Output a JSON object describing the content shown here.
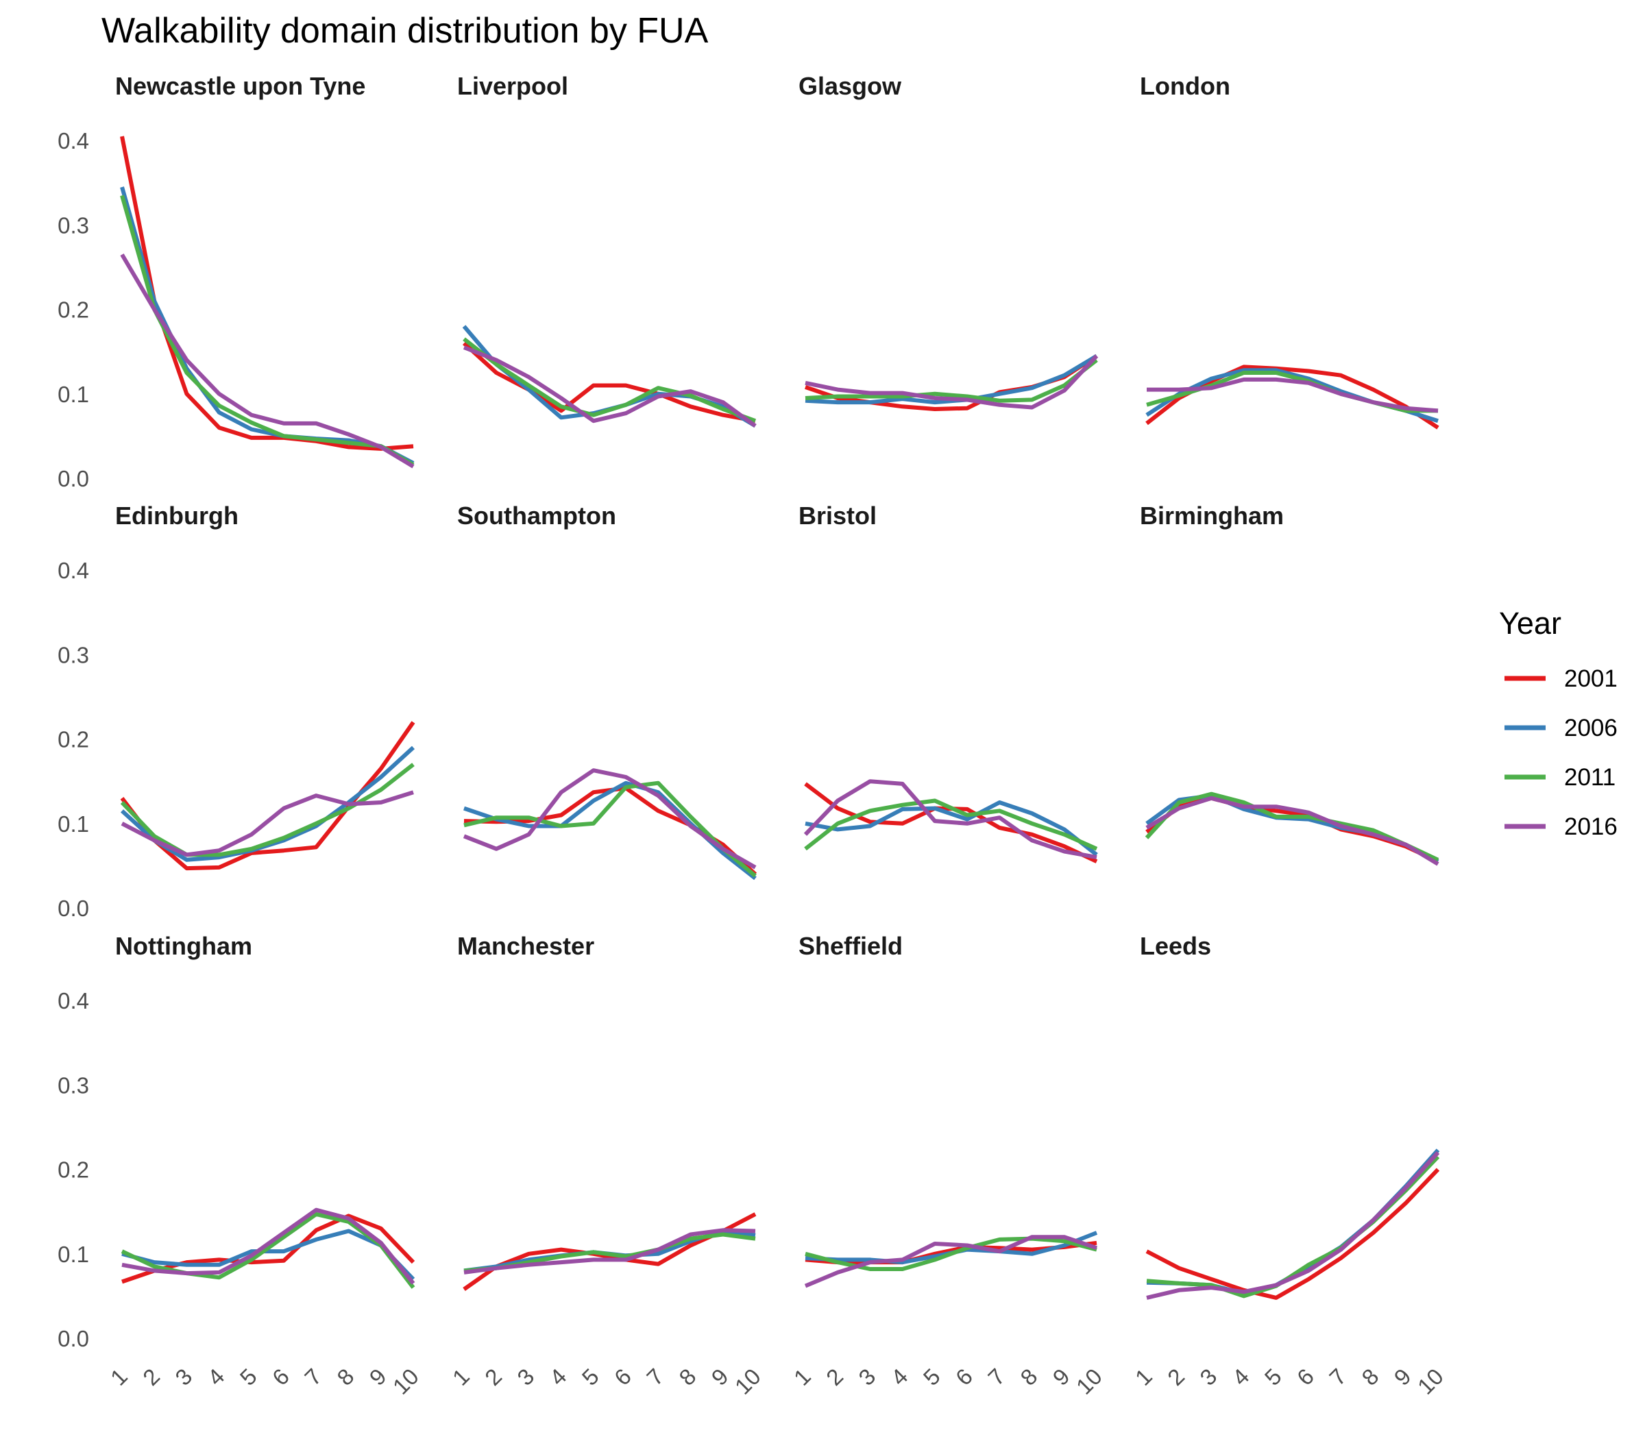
{
  "chart_data": {
    "type": "line",
    "title": "Walkability domain distribution by FUA",
    "xlabel": "",
    "ylabel": "",
    "x": [
      "1",
      "2",
      "3",
      "4",
      "5",
      "6",
      "7",
      "8",
      "9",
      "10"
    ],
    "ylim": [
      0,
      0.4
    ],
    "yticks": [
      "0.0",
      "0.1",
      "0.2",
      "0.3",
      "0.4"
    ],
    "grid": false,
    "legend": {
      "title": "Year",
      "placement": "right",
      "entries": [
        {
          "name": "2001",
          "color": "#E41A1C"
        },
        {
          "name": "2006",
          "color": "#377EB8"
        },
        {
          "name": "2011",
          "color": "#4DAF4A"
        },
        {
          "name": "2016",
          "color": "#984EA3"
        }
      ]
    },
    "panels": [
      {
        "name": "Newcastle upon Tyne",
        "series": [
          {
            "name": "2001",
            "values": [
              0.405,
              0.21,
              0.1,
              0.06,
              0.048,
              0.048,
              0.044,
              0.037,
              0.035,
              0.038
            ]
          },
          {
            "name": "2006",
            "values": [
              0.345,
              0.21,
              0.13,
              0.078,
              0.058,
              0.05,
              0.047,
              0.045,
              0.038,
              0.018
            ]
          },
          {
            "name": "2011",
            "values": [
              0.335,
              0.2,
              0.125,
              0.086,
              0.066,
              0.05,
              0.046,
              0.042,
              0.038,
              0.016
            ]
          },
          {
            "name": "2016",
            "values": [
              0.265,
              0.2,
              0.14,
              0.1,
              0.075,
              0.065,
              0.065,
              0.052,
              0.037,
              0.014
            ]
          }
        ]
      },
      {
        "name": "Liverpool",
        "series": [
          {
            "name": "2001",
            "values": [
              0.16,
              0.125,
              0.105,
              0.08,
              0.11,
              0.11,
              0.1,
              0.085,
              0.075,
              0.068
            ]
          },
          {
            "name": "2006",
            "values": [
              0.18,
              0.135,
              0.105,
              0.072,
              0.077,
              0.087,
              0.1,
              0.097,
              0.085,
              0.062
            ]
          },
          {
            "name": "2011",
            "values": [
              0.165,
              0.135,
              0.11,
              0.085,
              0.075,
              0.087,
              0.107,
              0.098,
              0.082,
              0.068
            ]
          },
          {
            "name": "2016",
            "values": [
              0.155,
              0.14,
              0.12,
              0.095,
              0.068,
              0.077,
              0.097,
              0.103,
              0.09,
              0.062
            ]
          }
        ]
      },
      {
        "name": "Glasgow",
        "series": [
          {
            "name": "2001",
            "values": [
              0.108,
              0.095,
              0.09,
              0.085,
              0.082,
              0.083,
              0.102,
              0.108,
              0.12,
              0.145
            ]
          },
          {
            "name": "2006",
            "values": [
              0.092,
              0.09,
              0.09,
              0.094,
              0.09,
              0.093,
              0.1,
              0.107,
              0.122,
              0.145
            ]
          },
          {
            "name": "2011",
            "values": [
              0.095,
              0.097,
              0.097,
              0.097,
              0.1,
              0.097,
              0.092,
              0.093,
              0.11,
              0.14
            ]
          },
          {
            "name": "2016",
            "values": [
              0.113,
              0.105,
              0.101,
              0.101,
              0.095,
              0.093,
              0.087,
              0.084,
              0.104,
              0.145
            ]
          }
        ]
      },
      {
        "name": "London",
        "series": [
          {
            "name": "2001",
            "values": [
              0.065,
              0.095,
              0.115,
              0.132,
              0.13,
              0.127,
              0.122,
              0.105,
              0.085,
              0.06
            ]
          },
          {
            "name": "2006",
            "values": [
              0.075,
              0.1,
              0.118,
              0.128,
              0.128,
              0.118,
              0.103,
              0.09,
              0.08,
              0.068
            ]
          },
          {
            "name": "2011",
            "values": [
              0.087,
              0.098,
              0.11,
              0.125,
              0.125,
              0.115,
              0.1,
              0.09,
              0.08,
              0.08
            ]
          },
          {
            "name": "2016",
            "values": [
              0.105,
              0.105,
              0.107,
              0.117,
              0.117,
              0.113,
              0.1,
              0.09,
              0.083,
              0.08
            ]
          }
        ]
      },
      {
        "name": "Edinburgh",
        "series": [
          {
            "name": "2001",
            "values": [
              0.13,
              0.08,
              0.047,
              0.048,
              0.065,
              0.068,
              0.072,
              0.12,
              0.165,
              0.22
            ]
          },
          {
            "name": "2006",
            "values": [
              0.115,
              0.08,
              0.057,
              0.06,
              0.068,
              0.08,
              0.097,
              0.125,
              0.155,
              0.19
            ]
          },
          {
            "name": "2011",
            "values": [
              0.125,
              0.085,
              0.063,
              0.063,
              0.07,
              0.083,
              0.1,
              0.118,
              0.14,
              0.17
            ]
          },
          {
            "name": "2016",
            "values": [
              0.1,
              0.08,
              0.063,
              0.068,
              0.087,
              0.118,
              0.133,
              0.123,
              0.125,
              0.137
            ]
          }
        ]
      },
      {
        "name": "Southampton",
        "series": [
          {
            "name": "2001",
            "values": [
              0.103,
              0.102,
              0.103,
              0.11,
              0.137,
              0.142,
              0.115,
              0.098,
              0.075,
              0.04
            ]
          },
          {
            "name": "2006",
            "values": [
              0.118,
              0.105,
              0.097,
              0.097,
              0.127,
              0.148,
              0.137,
              0.1,
              0.065,
              0.035
            ]
          },
          {
            "name": "2011",
            "values": [
              0.098,
              0.107,
              0.107,
              0.097,
              0.1,
              0.143,
              0.148,
              0.108,
              0.07,
              0.038
            ]
          },
          {
            "name": "2016",
            "values": [
              0.085,
              0.07,
              0.087,
              0.137,
              0.163,
              0.155,
              0.133,
              0.097,
              0.07,
              0.048
            ]
          }
        ]
      },
      {
        "name": "Bristol",
        "series": [
          {
            "name": "2001",
            "values": [
              0.147,
              0.118,
              0.102,
              0.1,
              0.118,
              0.117,
              0.095,
              0.087,
              0.073,
              0.055
            ]
          },
          {
            "name": "2006",
            "values": [
              0.1,
              0.093,
              0.097,
              0.117,
              0.118,
              0.105,
              0.125,
              0.112,
              0.093,
              0.063
            ]
          },
          {
            "name": "2011",
            "values": [
              0.07,
              0.1,
              0.115,
              0.122,
              0.127,
              0.11,
              0.115,
              0.1,
              0.087,
              0.07
            ]
          },
          {
            "name": "2016",
            "values": [
              0.087,
              0.127,
              0.15,
              0.147,
              0.103,
              0.1,
              0.107,
              0.08,
              0.067,
              0.06
            ]
          }
        ]
      },
      {
        "name": "Birmingham",
        "series": [
          {
            "name": "2001",
            "values": [
              0.09,
              0.12,
              0.13,
              0.12,
              0.115,
              0.11,
              0.093,
              0.085,
              0.073,
              0.055
            ]
          },
          {
            "name": "2006",
            "values": [
              0.1,
              0.128,
              0.133,
              0.117,
              0.107,
              0.105,
              0.095,
              0.088,
              0.075,
              0.055
            ]
          },
          {
            "name": "2011",
            "values": [
              0.083,
              0.125,
              0.135,
              0.125,
              0.108,
              0.108,
              0.1,
              0.092,
              0.075,
              0.057
            ]
          },
          {
            "name": "2016",
            "values": [
              0.095,
              0.118,
              0.13,
              0.12,
              0.12,
              0.113,
              0.097,
              0.087,
              0.075,
              0.052
            ]
          }
        ]
      },
      {
        "name": "Nottingham",
        "series": [
          {
            "name": "2001",
            "values": [
              0.067,
              0.08,
              0.09,
              0.093,
              0.09,
              0.092,
              0.128,
              0.145,
              0.13,
              0.09
            ]
          },
          {
            "name": "2006",
            "values": [
              0.1,
              0.09,
              0.087,
              0.087,
              0.103,
              0.103,
              0.117,
              0.127,
              0.11,
              0.07
            ]
          },
          {
            "name": "2011",
            "values": [
              0.103,
              0.085,
              0.077,
              0.072,
              0.093,
              0.12,
              0.147,
              0.138,
              0.11,
              0.06
            ]
          },
          {
            "name": "2016",
            "values": [
              0.087,
              0.08,
              0.077,
              0.078,
              0.098,
              0.125,
              0.152,
              0.142,
              0.113,
              0.065
            ]
          }
        ]
      },
      {
        "name": "Manchester",
        "series": [
          {
            "name": "2001",
            "values": [
              0.058,
              0.085,
              0.1,
              0.105,
              0.1,
              0.093,
              0.088,
              0.11,
              0.127,
              0.147
            ]
          },
          {
            "name": "2006",
            "values": [
              0.08,
              0.085,
              0.093,
              0.098,
              0.102,
              0.098,
              0.1,
              0.115,
              0.127,
              0.122
            ]
          },
          {
            "name": "2011",
            "values": [
              0.08,
              0.083,
              0.09,
              0.097,
              0.102,
              0.097,
              0.105,
              0.118,
              0.123,
              0.118
            ]
          },
          {
            "name": "2016",
            "values": [
              0.078,
              0.083,
              0.087,
              0.09,
              0.093,
              0.093,
              0.105,
              0.123,
              0.128,
              0.127
            ]
          }
        ]
      },
      {
        "name": "Sheffield",
        "series": [
          {
            "name": "2001",
            "values": [
              0.093,
              0.09,
              0.09,
              0.09,
              0.1,
              0.108,
              0.107,
              0.105,
              0.108,
              0.113
            ]
          },
          {
            "name": "2006",
            "values": [
              0.095,
              0.093,
              0.093,
              0.09,
              0.097,
              0.105,
              0.103,
              0.1,
              0.11,
              0.125
            ]
          },
          {
            "name": "2011",
            "values": [
              0.1,
              0.09,
              0.082,
              0.082,
              0.093,
              0.107,
              0.117,
              0.118,
              0.115,
              0.105
            ]
          },
          {
            "name": "2016",
            "values": [
              0.062,
              0.078,
              0.09,
              0.093,
              0.112,
              0.11,
              0.103,
              0.12,
              0.12,
              0.107
            ]
          }
        ]
      },
      {
        "name": "Leeds",
        "series": [
          {
            "name": "2001",
            "values": [
              0.103,
              0.083,
              0.07,
              0.057,
              0.048,
              0.07,
              0.095,
              0.125,
              0.16,
              0.2
            ]
          },
          {
            "name": "2006",
            "values": [
              0.066,
              0.065,
              0.063,
              0.053,
              0.063,
              0.085,
              0.108,
              0.14,
              0.18,
              0.223
            ]
          },
          {
            "name": "2011",
            "values": [
              0.068,
              0.065,
              0.063,
              0.05,
              0.062,
              0.087,
              0.107,
              0.138,
              0.175,
              0.215
            ]
          },
          {
            "name": "2016",
            "values": [
              0.048,
              0.057,
              0.06,
              0.055,
              0.063,
              0.08,
              0.105,
              0.14,
              0.178,
              0.22
            ]
          }
        ]
      }
    ]
  }
}
